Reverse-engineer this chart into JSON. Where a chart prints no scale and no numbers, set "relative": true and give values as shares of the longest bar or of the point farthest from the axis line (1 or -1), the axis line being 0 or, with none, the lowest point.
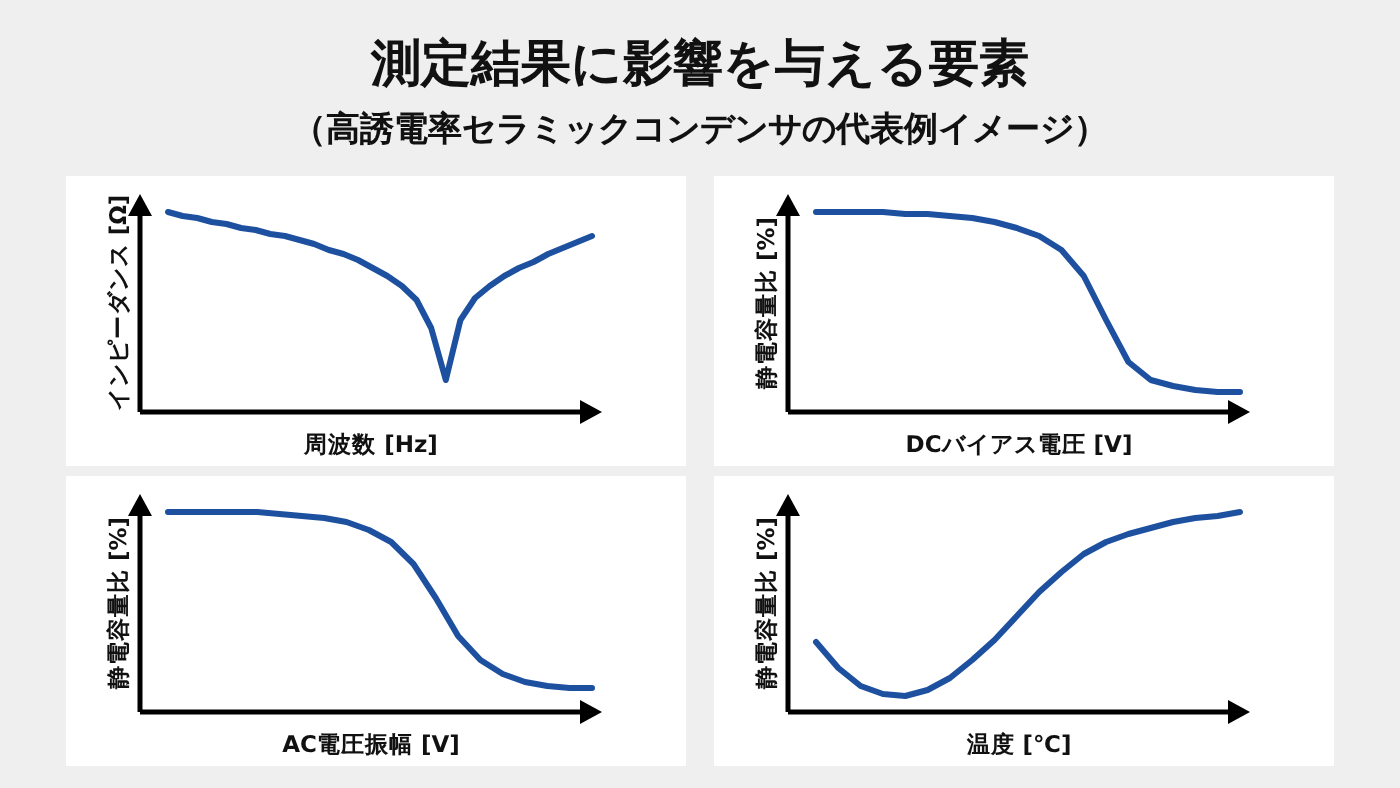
{
  "chart_data": [
    {
      "type": "line",
      "relative": true,
      "title": "測定結果に影響を与える要素",
      "subtitle": "（高誘電率セラミックコンデンサの代表例イメージ）",
      "xlabel": "周波数 [Hz]",
      "ylabel": "インピーダンス [Ω]",
      "categories": [
        null,
        null,
        null,
        null,
        null,
        null,
        null,
        null,
        null,
        null,
        null,
        null,
        null,
        null,
        null,
        null,
        null,
        null,
        null,
        null,
        null,
        null,
        null,
        null,
        null,
        null,
        null,
        null,
        null,
        null
      ],
      "series": [
        {
          "color": "#1e50a0",
          "values": [
            1.0,
            0.98,
            0.97,
            0.95,
            0.94,
            0.92,
            0.91,
            0.89,
            0.88,
            0.86,
            0.84,
            0.81,
            0.79,
            0.76,
            0.72,
            0.68,
            0.63,
            0.56,
            0.42,
            0.16,
            0.46,
            0.57,
            0.63,
            0.68,
            0.72,
            0.75,
            0.79,
            0.82,
            0.85,
            0.88
          ]
        }
      ]
    },
    {
      "type": "line",
      "relative": true,
      "xlabel": "DCバイアス電圧 [V]",
      "ylabel": "静電容量比 [%]",
      "categories": [
        null,
        null,
        null,
        null,
        null,
        null,
        null,
        null,
        null,
        null,
        null,
        null,
        null,
        null,
        null,
        null,
        null,
        null,
        null,
        null
      ],
      "series": [
        {
          "color": "#1e50a0",
          "values": [
            1.0,
            1.0,
            1.0,
            1.0,
            0.99,
            0.99,
            0.98,
            0.97,
            0.95,
            0.92,
            0.88,
            0.81,
            0.68,
            0.46,
            0.25,
            0.16,
            0.13,
            0.11,
            0.1,
            0.1
          ]
        }
      ]
    },
    {
      "type": "line",
      "relative": true,
      "xlabel": "AC電圧振幅 [V]",
      "ylabel": "静電容量比 [%]",
      "categories": [
        null,
        null,
        null,
        null,
        null,
        null,
        null,
        null,
        null,
        null,
        null,
        null,
        null,
        null,
        null,
        null,
        null,
        null,
        null,
        null
      ],
      "series": [
        {
          "color": "#1e50a0",
          "values": [
            1.0,
            1.0,
            1.0,
            1.0,
            1.0,
            0.99,
            0.98,
            0.97,
            0.95,
            0.91,
            0.85,
            0.74,
            0.57,
            0.38,
            0.26,
            0.19,
            0.15,
            0.13,
            0.12,
            0.12
          ]
        }
      ]
    },
    {
      "type": "line",
      "relative": true,
      "xlabel": "温度 [℃]",
      "ylabel": "静電容量比 [%]",
      "categories": [
        null,
        null,
        null,
        null,
        null,
        null,
        null,
        null,
        null,
        null,
        null,
        null,
        null,
        null,
        null,
        null,
        null,
        null,
        null,
        null
      ],
      "series": [
        {
          "color": "#1e50a0",
          "values": [
            0.35,
            0.22,
            0.13,
            0.09,
            0.08,
            0.11,
            0.17,
            0.26,
            0.36,
            0.48,
            0.6,
            0.7,
            0.79,
            0.85,
            0.89,
            0.92,
            0.95,
            0.97,
            0.98,
            1.0
          ]
        }
      ]
    }
  ]
}
